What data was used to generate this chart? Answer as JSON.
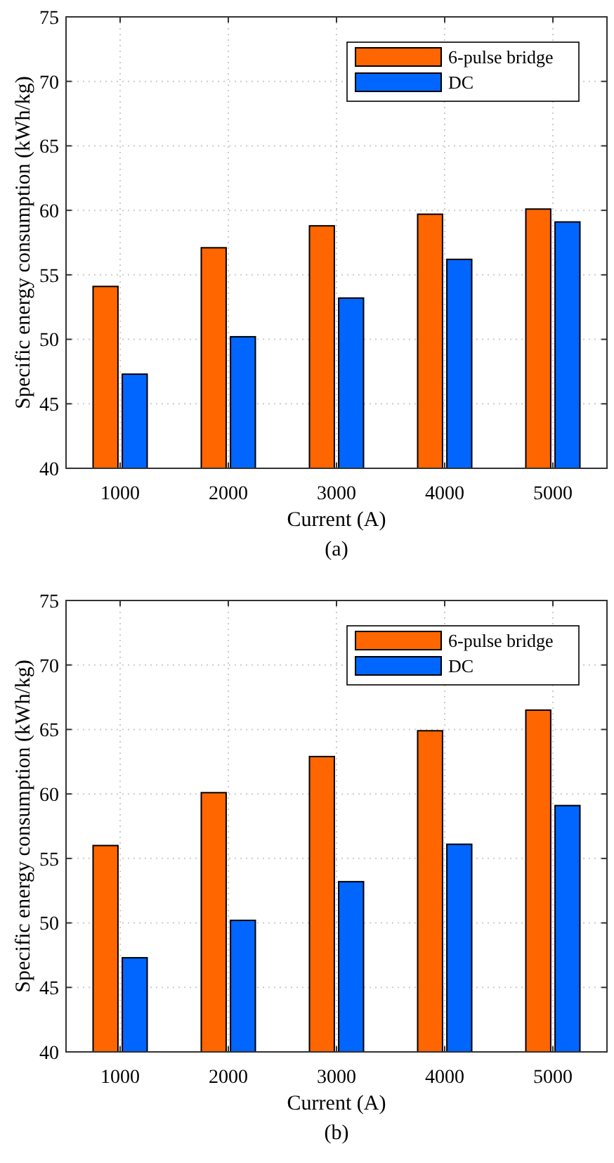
{
  "chart_data": [
    {
      "type": "bar",
      "categories": [
        "1000",
        "2000",
        "3000",
        "4000",
        "5000"
      ],
      "series": [
        {
          "name": "6-pulse bridge",
          "color": "#ff6600",
          "values": [
            54.1,
            57.1,
            58.8,
            59.7,
            60.1
          ]
        },
        {
          "name": "DC",
          "color": "#0066ff",
          "values": [
            47.3,
            50.2,
            53.2,
            56.2,
            59.1
          ]
        }
      ],
      "xlabel": "Current (A)",
      "ylabel": "Specific energy consumption (kWh/kg)",
      "ylim": [
        40,
        75
      ],
      "yticks": [
        40,
        45,
        50,
        55,
        60,
        65,
        70,
        75
      ],
      "grid": true,
      "legend": "top right",
      "annotations": [
        "(a)"
      ]
    },
    {
      "type": "bar",
      "categories": [
        "1000",
        "2000",
        "3000",
        "4000",
        "5000"
      ],
      "series": [
        {
          "name": "6-pulse bridge",
          "color": "#ff6600",
          "values": [
            56.0,
            60.1,
            62.9,
            64.9,
            66.5
          ]
        },
        {
          "name": "DC",
          "color": "#0066ff",
          "values": [
            47.3,
            50.2,
            53.2,
            56.1,
            59.1
          ]
        }
      ],
      "xlabel": "Current (A)",
      "ylabel": "Specific energy consumption (kWh/kg)",
      "ylim": [
        40,
        75
      ],
      "yticks": [
        40,
        45,
        50,
        55,
        60,
        65,
        70,
        75
      ],
      "grid": true,
      "legend": "top right",
      "annotations": [
        "(b)"
      ]
    }
  ]
}
